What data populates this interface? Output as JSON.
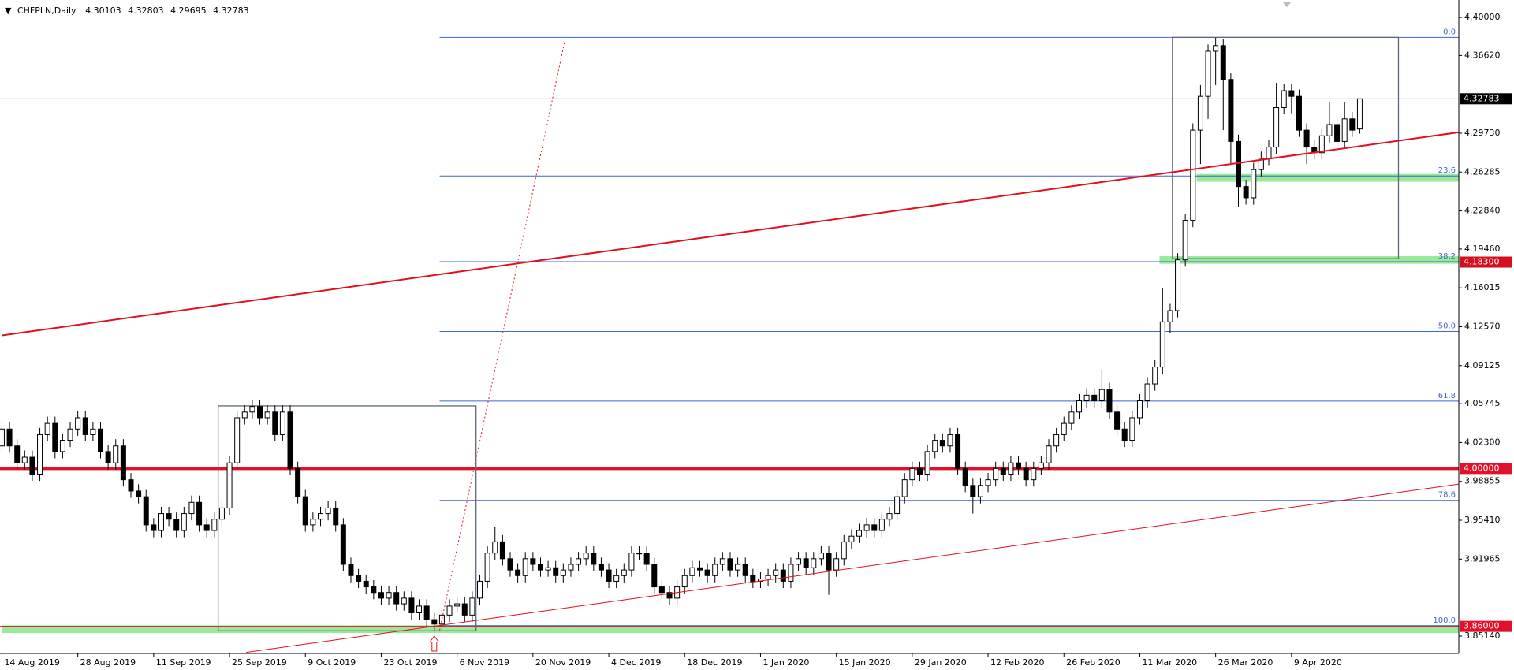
{
  "chart_data": {
    "type": "candlestick",
    "symbol": "CHFPLN,Daily",
    "categories": [
      "14 Aug 2019",
      null,
      null,
      null,
      null,
      null,
      null,
      null,
      null,
      null,
      "28 Aug 2019",
      null,
      null,
      null,
      null,
      null,
      null,
      null,
      null,
      null,
      "11 Sep 2019",
      null,
      null,
      null,
      null,
      null,
      null,
      null,
      null,
      null,
      "25 Sep 2019",
      null,
      null,
      null,
      null,
      null,
      null,
      null,
      null,
      null,
      "9 Oct 2019",
      null,
      null,
      null,
      null,
      null,
      null,
      null,
      null,
      null,
      "23 Oct 2019",
      null,
      null,
      null,
      null,
      null,
      null,
      null,
      null,
      null,
      "6 Nov 2019",
      null,
      null,
      null,
      null,
      null,
      null,
      null,
      null,
      null,
      "20 Nov 2019",
      null,
      null,
      null,
      null,
      null,
      null,
      null,
      null,
      null,
      "4 Dec 2019",
      null,
      null,
      null,
      null,
      null,
      null,
      null,
      null,
      null,
      "18 Dec 2019",
      null,
      null,
      null,
      null,
      null,
      null,
      null,
      null,
      null,
      "1 Jan 2020",
      null,
      null,
      null,
      null,
      null,
      null,
      null,
      null,
      null,
      "15 Jan 2020",
      null,
      null,
      null,
      null,
      null,
      null,
      null,
      null,
      null,
      "29 Jan 2020",
      null,
      null,
      null,
      null,
      null,
      null,
      null,
      null,
      null,
      "12 Feb 2020",
      null,
      null,
      null,
      null,
      null,
      null,
      null,
      null,
      null,
      "26 Feb 2020",
      null,
      null,
      null,
      null,
      null,
      null,
      null,
      null,
      null,
      "11 Mar 2020",
      null,
      null,
      null,
      null,
      null,
      null,
      null,
      null,
      null,
      "26 Mar 2020",
      null,
      null,
      null,
      null,
      null,
      null,
      null,
      null,
      null,
      "9 Apr 2020",
      null,
      null,
      null,
      null,
      null,
      null,
      null,
      null,
      null
    ],
    "open": [
      4.02,
      4.035,
      4.02,
      4.005,
      4.01,
      3.995,
      4.03,
      4.04,
      4.015,
      4.025,
      4.035,
      4.045,
      4.03,
      4.035,
      4.015,
      4.005,
      4.02,
      3.99,
      3.98,
      3.975,
      3.95,
      3.945,
      3.96,
      3.955,
      3.945,
      3.96,
      3.97,
      3.95,
      3.945,
      3.955,
      3.965,
      4.005,
      4.045,
      4.05,
      4.055,
      4.045,
      4.05,
      4.03,
      4.05,
      4.0,
      3.975,
      3.95,
      3.955,
      3.96,
      3.965,
      3.95,
      3.915,
      3.905,
      3.9,
      3.895,
      3.89,
      3.885,
      3.89,
      3.88,
      3.885,
      3.872,
      3.878,
      3.866,
      3.862,
      3.87,
      3.878,
      3.88,
      3.87,
      3.885,
      3.9,
      3.925,
      3.935,
      3.92,
      3.91,
      3.905,
      3.92,
      3.915,
      3.91,
      3.912,
      3.905,
      3.91,
      3.915,
      3.92,
      3.925,
      3.915,
      3.91,
      3.9,
      3.905,
      3.91,
      3.925,
      3.925,
      3.915,
      3.895,
      3.89,
      3.885,
      3.895,
      3.905,
      3.912,
      3.91,
      3.905,
      3.915,
      3.92,
      3.91,
      3.915,
      3.905,
      3.9,
      3.902,
      3.905,
      3.91,
      3.9,
      3.915,
      3.92,
      3.912,
      3.92,
      3.925,
      3.91,
      3.92,
      3.935,
      3.94,
      3.945,
      3.95,
      3.945,
      3.955,
      3.96,
      3.975,
      3.99,
      4.0,
      3.995,
      4.015,
      4.025,
      4.02,
      4.03,
      4.0,
      3.985,
      3.975,
      3.985,
      3.99,
      4.0,
      3.995,
      4.005,
      4.0,
      3.99,
      4.0,
      4.005,
      4.02,
      4.03,
      4.04,
      4.05,
      4.06,
      4.065,
      4.06,
      4.07,
      4.05,
      4.035,
      4.025,
      4.045,
      4.06,
      4.075,
      4.09,
      4.13,
      4.14,
      4.185,
      4.22,
      4.3,
      4.33,
      4.37,
      4.375,
      4.345,
      4.29,
      4.25,
      4.24,
      4.265,
      4.275,
      4.285,
      4.32,
      4.335,
      4.33,
      4.3,
      4.285,
      4.28,
      4.295,
      4.305,
      4.29,
      4.31,
      4.30103
    ],
    "high": [
      4.041,
      4.041,
      4.026,
      4.016,
      4.016,
      4.036,
      4.046,
      4.046,
      4.031,
      4.041,
      4.051,
      4.051,
      4.041,
      4.041,
      4.021,
      4.026,
      4.026,
      3.996,
      3.986,
      3.981,
      3.956,
      3.966,
      3.966,
      3.961,
      3.966,
      3.976,
      3.976,
      3.956,
      3.961,
      3.971,
      4.011,
      4.051,
      4.056,
      4.061,
      4.061,
      4.056,
      4.056,
      4.056,
      4.056,
      4.006,
      3.981,
      3.961,
      3.966,
      3.971,
      3.971,
      3.956,
      3.921,
      3.911,
      3.906,
      3.901,
      3.896,
      3.896,
      3.896,
      3.891,
      3.891,
      3.884,
      3.884,
      3.872,
      3.876,
      3.884,
      3.886,
      3.886,
      3.891,
      3.906,
      3.931,
      3.948,
      3.941,
      3.926,
      3.916,
      3.926,
      3.926,
      3.921,
      3.918,
      3.918,
      3.916,
      3.921,
      3.926,
      3.931,
      3.931,
      3.921,
      3.916,
      3.911,
      3.916,
      3.931,
      3.931,
      3.931,
      3.921,
      3.901,
      3.896,
      3.901,
      3.911,
      3.918,
      3.918,
      3.916,
      3.921,
      3.926,
      3.926,
      3.921,
      3.921,
      3.911,
      3.908,
      3.911,
      3.916,
      3.916,
      3.921,
      3.926,
      3.926,
      3.926,
      3.931,
      3.931,
      3.926,
      3.941,
      3.946,
      3.951,
      3.956,
      3.956,
      3.961,
      3.966,
      3.981,
      3.996,
      4.006,
      4.006,
      4.021,
      4.031,
      4.031,
      4.036,
      4.036,
      4.006,
      3.991,
      3.991,
      3.996,
      4.006,
      4.006,
      4.011,
      4.011,
      4.006,
      4.006,
      4.011,
      4.026,
      4.036,
      4.046,
      4.056,
      4.066,
      4.071,
      4.071,
      4.088,
      4.076,
      4.056,
      4.041,
      4.051,
      4.066,
      4.081,
      4.096,
      4.16,
      4.146,
      4.191,
      4.226,
      4.306,
      4.34,
      4.376,
      4.382,
      4.381,
      4.351,
      4.296,
      4.256,
      4.271,
      4.281,
      4.291,
      4.342,
      4.341,
      4.341,
      4.336,
      4.306,
      4.291,
      4.301,
      4.325,
      4.311,
      4.325,
      4.316,
      4.32803
    ],
    "low": [
      4.014,
      4.014,
      3.999,
      3.999,
      3.989,
      3.989,
      4.024,
      4.009,
      4.009,
      4.019,
      4.029,
      4.024,
      4.024,
      4.009,
      3.999,
      3.999,
      3.984,
      3.974,
      3.969,
      3.944,
      3.939,
      3.939,
      3.949,
      3.939,
      3.939,
      3.954,
      3.944,
      3.939,
      3.939,
      3.949,
      3.959,
      3.999,
      4.039,
      4.044,
      4.039,
      4.039,
      4.024,
      4.024,
      3.994,
      3.969,
      3.944,
      3.944,
      3.949,
      3.954,
      3.944,
      3.909,
      3.899,
      3.894,
      3.889,
      3.884,
      3.879,
      3.879,
      3.874,
      3.874,
      3.866,
      3.866,
      3.86,
      3.856,
      3.856,
      3.864,
      3.872,
      3.864,
      3.864,
      3.879,
      3.894,
      3.919,
      3.914,
      3.904,
      3.899,
      3.899,
      3.909,
      3.904,
      3.904,
      3.899,
      3.899,
      3.904,
      3.909,
      3.914,
      3.909,
      3.904,
      3.894,
      3.894,
      3.899,
      3.904,
      3.919,
      3.909,
      3.889,
      3.884,
      3.879,
      3.879,
      3.889,
      3.899,
      3.904,
      3.899,
      3.899,
      3.909,
      3.904,
      3.904,
      3.899,
      3.894,
      3.894,
      3.896,
      3.899,
      3.894,
      3.894,
      3.909,
      3.906,
      3.906,
      3.914,
      3.888,
      3.904,
      3.914,
      3.929,
      3.934,
      3.939,
      3.939,
      3.939,
      3.949,
      3.954,
      3.969,
      3.984,
      3.989,
      3.989,
      4.009,
      4.014,
      4.014,
      3.994,
      3.979,
      3.96,
      3.969,
      3.979,
      3.984,
      3.989,
      3.989,
      3.994,
      3.984,
      3.984,
      3.994,
      3.999,
      4.014,
      4.024,
      4.034,
      4.044,
      4.054,
      4.054,
      4.054,
      4.044,
      4.029,
      4.019,
      4.019,
      4.039,
      4.054,
      4.069,
      4.084,
      4.12,
      4.134,
      4.179,
      4.214,
      4.27,
      4.31,
      4.34,
      4.3,
      4.27,
      4.232,
      4.234,
      4.234,
      4.259,
      4.269,
      4.279,
      4.314,
      4.315,
      4.294,
      4.27,
      4.274,
      4.274,
      4.289,
      4.284,
      4.284,
      4.294,
      4.29695
    ],
    "close": [
      4.035,
      4.02,
      4.005,
      4.01,
      3.995,
      4.03,
      4.04,
      4.015,
      4.025,
      4.035,
      4.045,
      4.03,
      4.035,
      4.015,
      4.005,
      4.02,
      3.99,
      3.98,
      3.975,
      3.95,
      3.945,
      3.96,
      3.955,
      3.945,
      3.96,
      3.97,
      3.95,
      3.945,
      3.955,
      3.965,
      4.005,
      4.045,
      4.05,
      4.055,
      4.045,
      4.05,
      4.03,
      4.05,
      4.0,
      3.975,
      3.95,
      3.955,
      3.96,
      3.965,
      3.95,
      3.915,
      3.905,
      3.9,
      3.895,
      3.89,
      3.885,
      3.89,
      3.88,
      3.885,
      3.872,
      3.878,
      3.866,
      3.862,
      3.87,
      3.878,
      3.88,
      3.87,
      3.885,
      3.9,
      3.925,
      3.935,
      3.92,
      3.91,
      3.905,
      3.92,
      3.915,
      3.91,
      3.912,
      3.905,
      3.91,
      3.915,
      3.92,
      3.925,
      3.915,
      3.91,
      3.9,
      3.905,
      3.91,
      3.925,
      3.925,
      3.915,
      3.895,
      3.89,
      3.885,
      3.895,
      3.905,
      3.912,
      3.91,
      3.905,
      3.915,
      3.92,
      3.91,
      3.915,
      3.905,
      3.9,
      3.902,
      3.905,
      3.91,
      3.9,
      3.915,
      3.92,
      3.912,
      3.92,
      3.925,
      3.91,
      3.92,
      3.935,
      3.94,
      3.945,
      3.95,
      3.945,
      3.955,
      3.96,
      3.975,
      3.99,
      4.0,
      3.995,
      4.015,
      4.025,
      4.02,
      4.03,
      4.0,
      3.985,
      3.975,
      3.985,
      3.99,
      4.0,
      3.995,
      4.005,
      4.0,
      3.99,
      4.0,
      4.005,
      4.02,
      4.03,
      4.04,
      4.05,
      4.06,
      4.065,
      4.06,
      4.07,
      4.05,
      4.035,
      4.025,
      4.045,
      4.06,
      4.075,
      4.09,
      4.13,
      4.14,
      4.185,
      4.22,
      4.3,
      4.33,
      4.37,
      4.375,
      4.345,
      4.29,
      4.25,
      4.24,
      4.265,
      4.275,
      4.285,
      4.32,
      4.335,
      4.33,
      4.3,
      4.285,
      4.28,
      4.295,
      4.305,
      4.29,
      4.31,
      4.3,
      4.32783
    ],
    "ylim": [
      3.836,
      4.4154
    ],
    "yticks": [
      {
        "value": 4.4,
        "label": "4.40000"
      },
      {
        "value": 4.3662,
        "label": "4.36620"
      },
      {
        "value": 4.2973,
        "label": "4.29730"
      },
      {
        "value": 4.26285,
        "label": "4.26285"
      },
      {
        "value": 4.2284,
        "label": "4.22840"
      },
      {
        "value": 4.1946,
        "label": "4.19460"
      },
      {
        "value": 4.16015,
        "label": "4.16015"
      },
      {
        "value": 4.1257,
        "label": "4.12570"
      },
      {
        "value": 4.09125,
        "label": "4.09125"
      },
      {
        "value": 4.05745,
        "label": "4.05745"
      },
      {
        "value": 4.023,
        "label": "4.02300"
      },
      {
        "value": 3.98855,
        "label": "3.98855"
      },
      {
        "value": 3.9541,
        "label": "3.95410"
      },
      {
        "value": 3.91965,
        "label": "3.91965"
      },
      {
        "value": 3.8514,
        "label": "3.85140"
      }
    ],
    "levels": [
      {
        "value": 4.183,
        "label": "4.18300",
        "color": "#d40f1e",
        "width": 1
      },
      {
        "value": 4,
        "label": "4.00000",
        "color": "#e0112b",
        "width": 4
      },
      {
        "value": 3.86,
        "label": "3.86000",
        "color": "#e0112b",
        "width": 1
      }
    ],
    "fibonacci": {
      "color": "#3e64d6",
      "start": 57.7,
      "levels": [
        {
          "label": "0.0",
          "price": 4.3823
        },
        {
          "label": "23.6",
          "price": 4.2594
        },
        {
          "label": "38.2",
          "price": 4.1834
        },
        {
          "label": "50.0",
          "price": 4.1215
        },
        {
          "label": "61.8",
          "price": 4.0597
        },
        {
          "label": "78.6",
          "price": 3.9718
        },
        {
          "label": "100.0",
          "price": 3.8606
        }
      ]
    },
    "trendlines": [
      {
        "x": [
          0,
          199.4
        ],
        "y": [
          4.118,
          4.305
        ],
        "color": "#e3101c",
        "width": 2,
        "dash": false
      },
      {
        "x": [
          32.2,
          199.4
        ],
        "y": [
          3.837,
          3.993
        ],
        "color": "#e3101c",
        "width": 1,
        "dash": false
      },
      {
        "x": [
          57.7,
          74.3
        ],
        "y": [
          3.8566,
          4.3823
        ],
        "color": "#e3101c",
        "width": 1,
        "dash": true
      }
    ],
    "boxes": [
      {
        "x": [
          28.5,
          62.5
        ],
        "y": [
          3.856,
          4.0555
        ],
        "color": "#5a6978"
      },
      {
        "x": [
          154.3,
          184.1
        ],
        "y": [
          4.186,
          4.3823
        ],
        "color": "#5a6978"
      }
    ],
    "zones": [
      {
        "x": 157.5,
        "y": [
          4.2543,
          4.2612
        ],
        "color": "#8ee88e"
      },
      {
        "x": 152.6,
        "y": [
          4.1815,
          4.1883
        ],
        "color": "#8ee88e"
      },
      {
        "x": 0,
        "y": [
          3.8541,
          3.8609
        ],
        "color": "#8ee88e"
      }
    ]
  }
}
